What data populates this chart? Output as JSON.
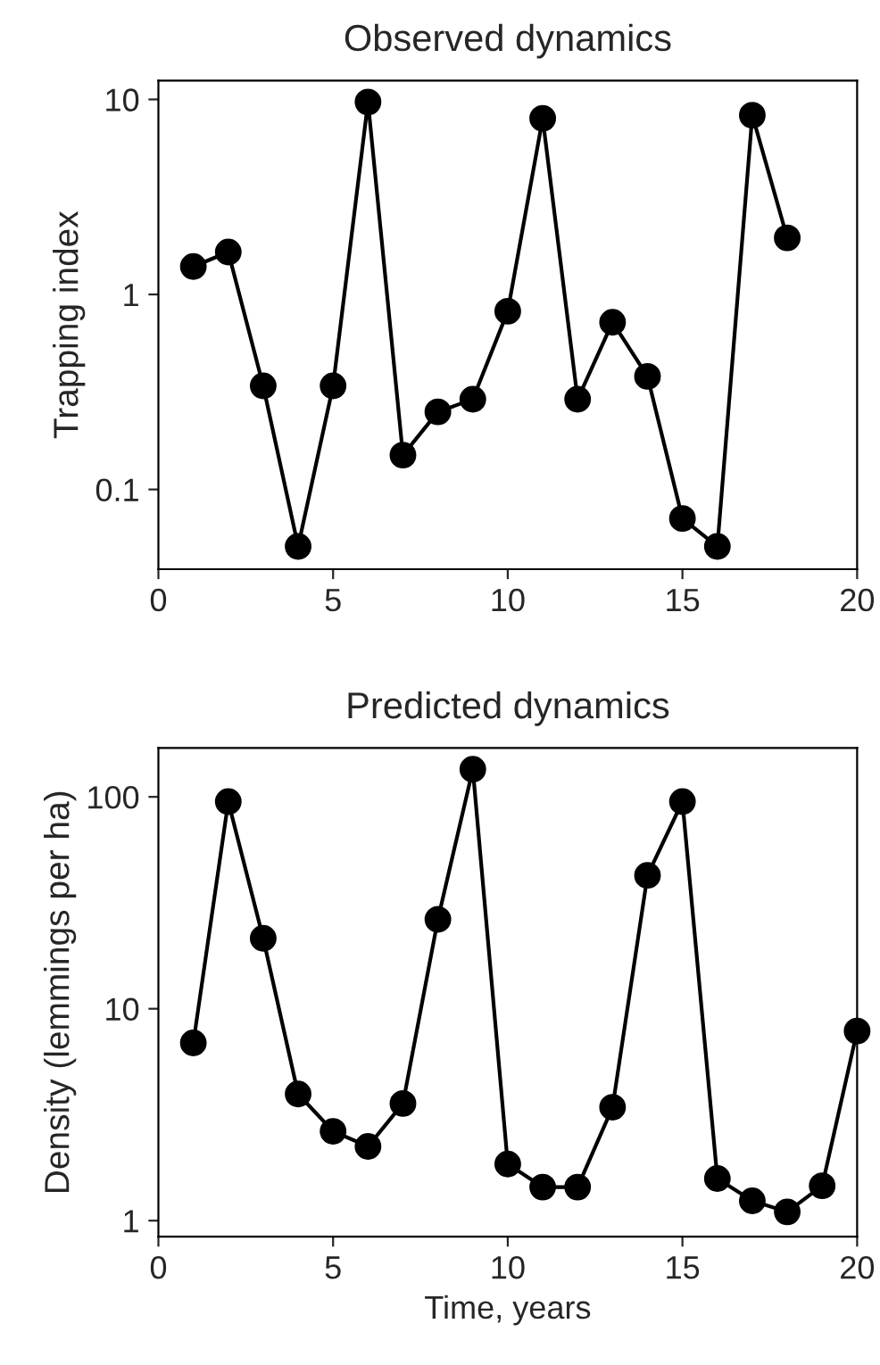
{
  "chart_data": [
    {
      "type": "line",
      "title": "Observed dynamics",
      "ylabel": "Trapping index",
      "log": "y",
      "marker": "circle",
      "line_style": "solid",
      "grid": false,
      "x": [
        1,
        2,
        3,
        4,
        5,
        6,
        7,
        8,
        9,
        10,
        11,
        12,
        13,
        14,
        15,
        16,
        17,
        18
      ],
      "series": [
        {
          "color": "#000000",
          "values": [
            1.39,
            1.65,
            0.34,
            0.051,
            0.34,
            9.7,
            0.15,
            0.25,
            0.29,
            0.82,
            8.0,
            0.29,
            0.72,
            0.38,
            0.071,
            0.051,
            8.3,
            1.95
          ]
        }
      ],
      "xlim": [
        0,
        20
      ],
      "xticks": [
        0,
        5,
        10,
        15,
        20
      ],
      "ylim": [
        0.039,
        12.5
      ],
      "yticks": [
        0.1,
        1,
        10
      ]
    },
    {
      "type": "line",
      "title": "Predicted dynamics",
      "xlabel": "Time, years",
      "ylabel": "Density (lemmings per ha)",
      "log": "y",
      "marker": "circle",
      "line_style": "solid",
      "grid": false,
      "x": [
        1,
        2,
        3,
        4,
        5,
        6,
        7,
        8,
        9,
        10,
        11,
        12,
        13,
        14,
        15,
        16,
        17,
        18,
        19,
        20
      ],
      "series": [
        {
          "color": "#000000",
          "values": [
            6.9,
            95,
            21.5,
            3.96,
            2.64,
            2.24,
            3.57,
            26.4,
            135,
            1.85,
            1.44,
            1.44,
            3.43,
            42.6,
            95,
            1.58,
            1.24,
            1.1,
            1.46,
            7.85
          ]
        }
      ],
      "xlim": [
        0,
        20
      ],
      "xticks": [
        0,
        5,
        10,
        15,
        20
      ],
      "ylim": [
        0.84,
        170
      ],
      "yticks": [
        1,
        10,
        100
      ]
    }
  ]
}
